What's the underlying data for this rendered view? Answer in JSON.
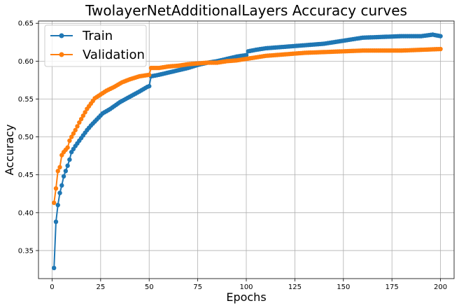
{
  "chart_data": {
    "type": "line",
    "title": "TwolayerNetAdditionalLayers Accuracy curves",
    "xlabel": "Epochs",
    "ylabel": "Accuracy",
    "xlim": [
      -7,
      207
    ],
    "ylim": [
      0.313,
      0.653
    ],
    "xticks": [
      0,
      25,
      50,
      75,
      100,
      125,
      150,
      175,
      200
    ],
    "yticks": [
      0.35,
      0.4,
      0.45,
      0.5,
      0.55,
      0.6,
      0.65
    ],
    "grid": true,
    "legend_position": "upper-left",
    "series": [
      {
        "name": "Train",
        "color": "#1f77b4",
        "anchors": [
          [
            1,
            0.327
          ],
          [
            2,
            0.388
          ],
          [
            3,
            0.41
          ],
          [
            4,
            0.426
          ],
          [
            5,
            0.436
          ],
          [
            6,
            0.448
          ],
          [
            7,
            0.455
          ],
          [
            8,
            0.462
          ],
          [
            9,
            0.47
          ],
          [
            10,
            0.48
          ],
          [
            12,
            0.488
          ],
          [
            14,
            0.495
          ],
          [
            16,
            0.502
          ],
          [
            18,
            0.509
          ],
          [
            20,
            0.515
          ],
          [
            23,
            0.523
          ],
          [
            26,
            0.531
          ],
          [
            30,
            0.537
          ],
          [
            35,
            0.546
          ],
          [
            40,
            0.553
          ],
          [
            45,
            0.56
          ],
          [
            49,
            0.566
          ],
          [
            50,
            0.567
          ],
          [
            51,
            0.58
          ],
          [
            55,
            0.582
          ],
          [
            60,
            0.585
          ],
          [
            65,
            0.588
          ],
          [
            70,
            0.591
          ],
          [
            75,
            0.595
          ],
          [
            80,
            0.598
          ],
          [
            85,
            0.6
          ],
          [
            90,
            0.603
          ],
          [
            95,
            0.606
          ],
          [
            100,
            0.608
          ],
          [
            101,
            0.613
          ],
          [
            105,
            0.615
          ],
          [
            110,
            0.617
          ],
          [
            115,
            0.618
          ],
          [
            120,
            0.619
          ],
          [
            125,
            0.62
          ],
          [
            130,
            0.621
          ],
          [
            140,
            0.623
          ],
          [
            150,
            0.627
          ],
          [
            160,
            0.631
          ],
          [
            170,
            0.632
          ],
          [
            180,
            0.633
          ],
          [
            190,
            0.633
          ],
          [
            196,
            0.635
          ],
          [
            200,
            0.633
          ]
        ]
      },
      {
        "name": "Validation",
        "color": "#ff7f0e",
        "anchors": [
          [
            1,
            0.413
          ],
          [
            2,
            0.432
          ],
          [
            3,
            0.455
          ],
          [
            4,
            0.46
          ],
          [
            5,
            0.476
          ],
          [
            6,
            0.48
          ],
          [
            8,
            0.486
          ],
          [
            9,
            0.495
          ],
          [
            10,
            0.5
          ],
          [
            12,
            0.509
          ],
          [
            14,
            0.519
          ],
          [
            16,
            0.528
          ],
          [
            18,
            0.537
          ],
          [
            20,
            0.544
          ],
          [
            22,
            0.551
          ],
          [
            25,
            0.556
          ],
          [
            28,
            0.561
          ],
          [
            32,
            0.566
          ],
          [
            36,
            0.572
          ],
          [
            40,
            0.576
          ],
          [
            45,
            0.58
          ],
          [
            50,
            0.582
          ],
          [
            51,
            0.591
          ],
          [
            55,
            0.591
          ],
          [
            60,
            0.593
          ],
          [
            65,
            0.594
          ],
          [
            70,
            0.596
          ],
          [
            75,
            0.597
          ],
          [
            80,
            0.598
          ],
          [
            85,
            0.598
          ],
          [
            90,
            0.6
          ],
          [
            95,
            0.601
          ],
          [
            100,
            0.603
          ],
          [
            105,
            0.605
          ],
          [
            110,
            0.607
          ],
          [
            120,
            0.609
          ],
          [
            130,
            0.611
          ],
          [
            140,
            0.612
          ],
          [
            150,
            0.613
          ],
          [
            160,
            0.614
          ],
          [
            170,
            0.614
          ],
          [
            180,
            0.614
          ],
          [
            190,
            0.615
          ],
          [
            200,
            0.616
          ]
        ]
      }
    ]
  }
}
